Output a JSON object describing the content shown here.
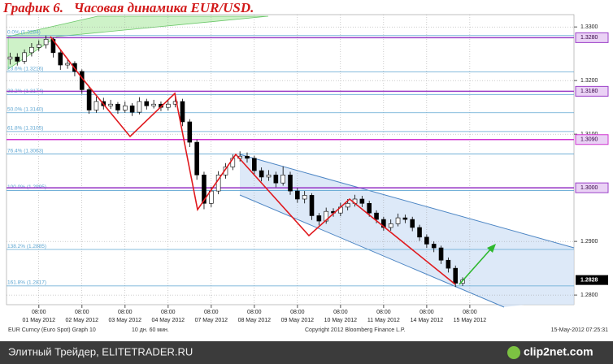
{
  "chart_data": {
    "type": "candlestick",
    "title": "График 6.   Часовая динамика EUR/USD.",
    "up_color": "#ffffff",
    "down_color": "#000000",
    "open": [
      1.324,
      1.3244,
      1.3236,
      1.3252,
      1.3262,
      1.3267,
      1.3277,
      1.3252,
      1.3229,
      1.3232,
      1.3217,
      1.3183,
      1.3145,
      1.3161,
      1.3153,
      1.3156,
      1.3145,
      1.3153,
      1.3141,
      1.3161,
      1.3153,
      1.3156,
      1.315,
      1.3156,
      1.3161,
      1.3123,
      1.3085,
      1.3024,
      1.2971,
      1.2994,
      1.3024,
      1.3039,
      1.3055,
      1.3059,
      1.3055,
      1.3032,
      1.302,
      1.3024,
      1.3009,
      1.3024,
      1.2994,
      1.2979,
      1.2986,
      1.2948,
      1.2938,
      1.2956,
      1.2953,
      1.2964,
      1.2971,
      1.2979,
      1.2971,
      1.2953,
      1.2941,
      1.2926,
      1.2933,
      1.2944,
      1.2941,
      1.2926,
      1.2908,
      1.2895,
      1.2888,
      1.2865,
      1.285,
      1.2822
    ],
    "high": [
      1.3252,
      1.3251,
      1.3258,
      1.327,
      1.3275,
      1.3284,
      1.328,
      1.3256,
      1.324,
      1.3236,
      1.3221,
      1.3188,
      1.317,
      1.3168,
      1.3164,
      1.316,
      1.3161,
      1.3158,
      1.3169,
      1.3166,
      1.3164,
      1.3161,
      1.3163,
      1.3176,
      1.3166,
      1.3128,
      1.309,
      1.303,
      1.3002,
      1.3031,
      1.3046,
      1.3062,
      1.3068,
      1.3066,
      1.306,
      1.3038,
      1.3033,
      1.303,
      1.304,
      1.303,
      1.3,
      1.2994,
      1.299,
      1.2953,
      1.2963,
      1.2962,
      1.2972,
      1.2979,
      1.2987,
      1.2985,
      1.2976,
      1.2958,
      1.2946,
      1.2941,
      1.2952,
      1.295,
      1.2946,
      1.2931,
      1.2913,
      1.29,
      1.2892,
      1.287,
      1.2855,
      1.2833
    ],
    "low": [
      1.323,
      1.3228,
      1.3231,
      1.3245,
      1.3255,
      1.326,
      1.3243,
      1.322,
      1.3222,
      1.3208,
      1.3175,
      1.3138,
      1.314,
      1.3146,
      1.3147,
      1.3138,
      1.314,
      1.3134,
      1.3137,
      1.3146,
      1.3148,
      1.3143,
      1.3144,
      1.315,
      1.3115,
      1.3076,
      1.3015,
      1.296,
      1.2964,
      1.2988,
      1.3017,
      1.3033,
      1.3049,
      1.3047,
      1.3025,
      1.3012,
      1.3013,
      1.3001,
      1.3004,
      1.2987,
      1.2972,
      1.2971,
      1.294,
      1.293,
      1.2933,
      1.2946,
      1.2947,
      1.2958,
      1.2965,
      1.2964,
      1.2946,
      1.2934,
      1.292,
      1.292,
      1.2928,
      1.2934,
      1.2919,
      1.2901,
      1.2888,
      1.288,
      1.2858,
      1.2842,
      1.2815,
      1.2817
    ],
    "close": [
      1.3244,
      1.3236,
      1.3252,
      1.3262,
      1.3267,
      1.3277,
      1.3252,
      1.3229,
      1.3232,
      1.3217,
      1.3183,
      1.3145,
      1.3161,
      1.3153,
      1.3156,
      1.3145,
      1.3153,
      1.3141,
      1.3161,
      1.3153,
      1.3156,
      1.315,
      1.3156,
      1.3161,
      1.3123,
      1.3085,
      1.3024,
      1.2971,
      1.2994,
      1.3024,
      1.3039,
      1.3055,
      1.3059,
      1.3055,
      1.3032,
      1.302,
      1.3024,
      1.3009,
      1.3024,
      1.2994,
      1.2979,
      1.2986,
      1.2948,
      1.2938,
      1.2956,
      1.2953,
      1.2964,
      1.2971,
      1.2979,
      1.2971,
      1.2953,
      1.2941,
      1.2926,
      1.2933,
      1.2944,
      1.2941,
      1.2926,
      1.2908,
      1.2895,
      1.2888,
      1.2865,
      1.285,
      1.2822,
      1.2828
    ],
    "xlim": [
      -0.5,
      78.5
    ],
    "xticks": [
      {
        "value": 4,
        "label": "08:00"
      },
      {
        "value": 10,
        "label": "08:00"
      },
      {
        "value": 16,
        "label": "08:00"
      },
      {
        "value": 22,
        "label": "08:00"
      },
      {
        "value": 28,
        "label": "08:00"
      },
      {
        "value": 34,
        "label": "08:00"
      },
      {
        "value": 40,
        "label": "08:00"
      },
      {
        "value": 46,
        "label": "08:00"
      },
      {
        "value": 52,
        "label": "08:00"
      },
      {
        "value": 58,
        "label": "08:00"
      },
      {
        "value": 64,
        "label": "08:00"
      }
    ],
    "xdates": [
      {
        "value": 4,
        "label": "01 May 2012"
      },
      {
        "value": 10,
        "label": "02 May 2012"
      },
      {
        "value": 16,
        "label": "03 May 2012"
      },
      {
        "value": 22,
        "label": "04 May 2012"
      },
      {
        "value": 28,
        "label": "07 May 2012"
      },
      {
        "value": 34,
        "label": "08 May 2012"
      },
      {
        "value": 40,
        "label": "09 May 2012"
      },
      {
        "value": 46,
        "label": "10 May 2012"
      },
      {
        "value": 52,
        "label": "11 May 2012"
      },
      {
        "value": 58,
        "label": "14 May 2012"
      },
      {
        "value": 64,
        "label": "15 May 2012"
      }
    ],
    "ylim": [
      1.2782,
      1.3323
    ],
    "yticks": [
      {
        "value": 1.33,
        "label": "1.3300"
      },
      {
        "value": 1.32,
        "label": "1.3200"
      },
      {
        "value": 1.31,
        "label": "1.3100"
      },
      {
        "value": 1.29,
        "label": "1.2900"
      },
      {
        "value": 1.28,
        "label": "1.2800"
      }
    ],
    "grid": true,
    "fib_levels": [
      {
        "value": 1.3284,
        "label": "0.0% (1.3284)"
      },
      {
        "value": 1.3216,
        "label": "23.6% (1.3216)"
      },
      {
        "value": 1.3174,
        "label": "38.2% (1.3174)"
      },
      {
        "value": 1.314,
        "label": "50.0% (1.3140)"
      },
      {
        "value": 1.3105,
        "label": "61.8% (1.3105)"
      },
      {
        "value": 1.3063,
        "label": "76.4% (1.3063)"
      },
      {
        "value": 1.2995,
        "label": "100.0% (1.2995)"
      },
      {
        "value": 1.2885,
        "label": "138.2% (1.2885)"
      },
      {
        "value": 1.2817,
        "label": "161.8% (1.2817)"
      }
    ],
    "fib_color": "#5ea6d2",
    "levels": [
      {
        "value": 1.328,
        "label": "1.3280",
        "color": "#9b3fc8"
      },
      {
        "value": 1.318,
        "label": "1.3180",
        "color": "#9b3fc8"
      },
      {
        "value": 1.309,
        "label": "1.3090",
        "color": "#d035d0"
      },
      {
        "value": 1.3,
        "label": "1.3000",
        "color": "#9b3fc8"
      }
    ],
    "last_price": {
      "value": 1.2828,
      "label": "1.2828"
    },
    "footer_security": "EUR Curncy (Euro Spot) Graph 10",
    "footer_period": "10 дн. 60 мин.",
    "footer_copyright": "Copyright 2012 Bloomberg Finance L.P.",
    "footer_time": "15-May-2012 07:25:31"
  },
  "banner": {
    "text": "Элитный Трейдер, ELITETRADER.RU",
    "logo": "clip2net.com"
  }
}
